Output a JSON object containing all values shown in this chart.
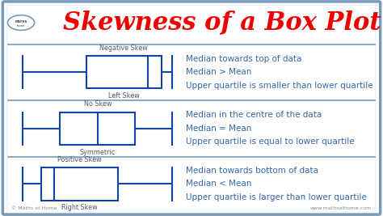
{
  "title": "Skewness of a Box Plot",
  "title_color": "#EE0000",
  "background_color": "#FFFFFF",
  "border_color": "#7799BB",
  "box_color": "#1144AA",
  "text_color": "#3366AA",
  "label_color": "#555566",
  "rows": [
    {
      "top_label": "Negative Skew",
      "bottom_label": "Left Skew",
      "wl": 0.03,
      "wr": 0.43,
      "bl": 0.2,
      "br": 0.4,
      "med": 0.365,
      "lines": [
        "Median towards top of data",
        "Median > Mean",
        "Upper quartile is smaller than lower quartile"
      ]
    },
    {
      "top_label": "No Skew",
      "bottom_label": "Symmetric",
      "wl": 0.03,
      "wr": 0.43,
      "bl": 0.13,
      "br": 0.33,
      "med": 0.23,
      "lines": [
        "Median in the centre of the data",
        "Median = Mean",
        "Upper quartile is equal to lower quartile"
      ]
    },
    {
      "top_label": "Positive Skew",
      "bottom_label": "Right Skew",
      "wl": 0.03,
      "wr": 0.43,
      "bl": 0.08,
      "br": 0.285,
      "med": 0.115,
      "lines": [
        "Median towards bottom of data",
        "Median < Mean",
        "Upper quartile is larger than lower quartile"
      ]
    }
  ],
  "logo_text": "© Maths at Home",
  "website_text": "www.mathsathome.com",
  "title_fontsize": 22,
  "label_fontsize": 5.8,
  "text_fontsize": 7.5
}
